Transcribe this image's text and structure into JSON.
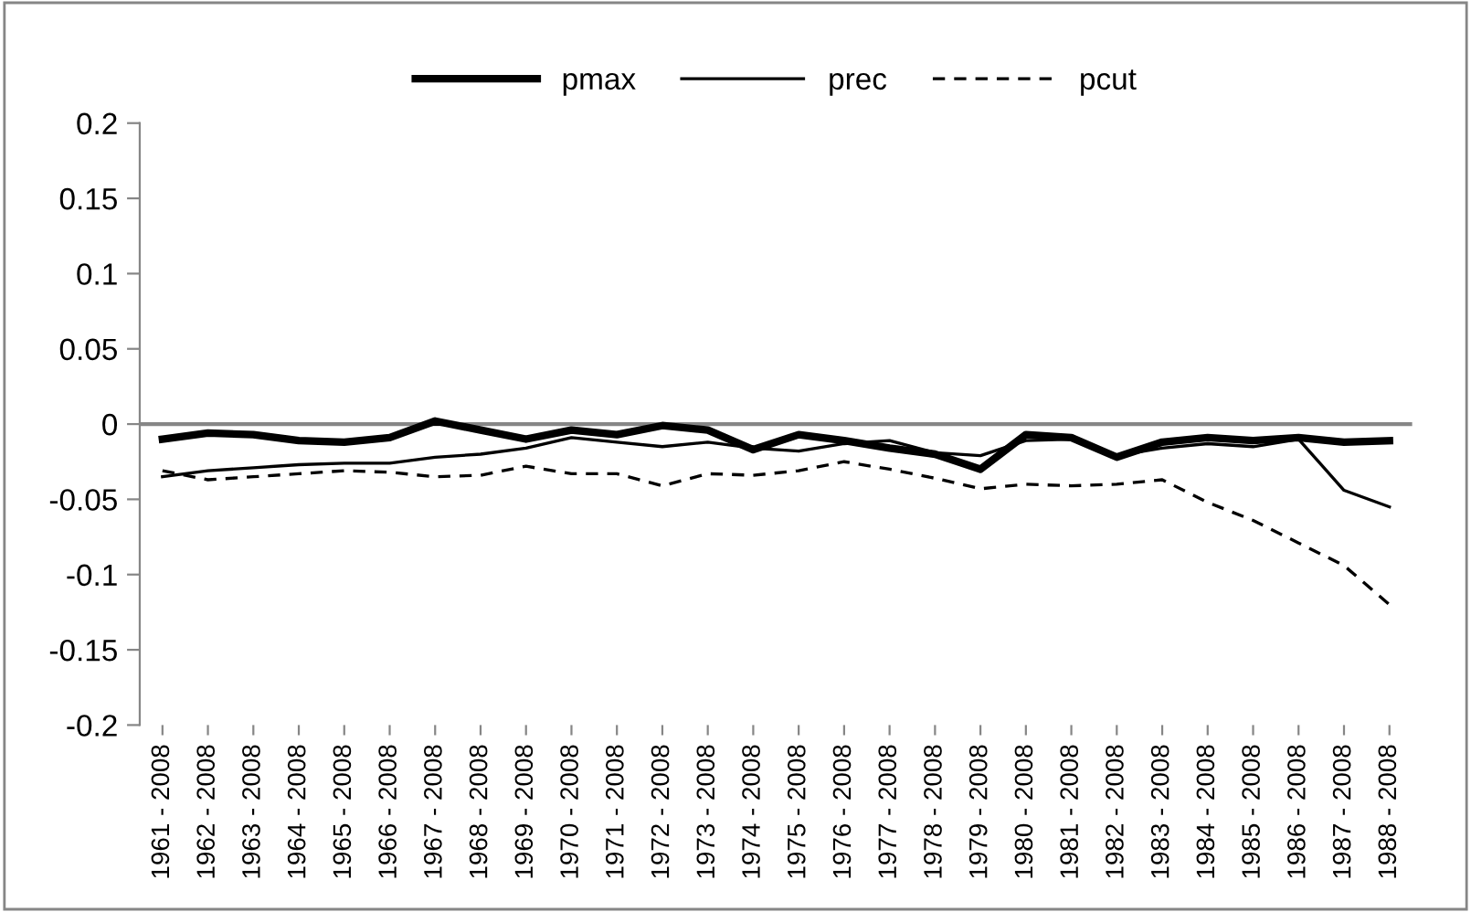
{
  "chart_data": {
    "type": "line",
    "categories": [
      "1961 - 2008",
      "1962 - 2008",
      "1963 - 2008",
      "1964 - 2008",
      "1965 - 2008",
      "1966 - 2008",
      "1967 - 2008",
      "1968 - 2008",
      "1969 - 2008",
      "1970 - 2008",
      "1971 - 2008",
      "1972 - 2008",
      "1973 - 2008",
      "1974 - 2008",
      "1975 - 2008",
      "1976 - 2008",
      "1977 - 2008",
      "1978 - 2008",
      "1979 - 2008",
      "1980 - 2008",
      "1981 - 2008",
      "1982 - 2008",
      "1983 - 2008",
      "1984 - 2008",
      "1985 - 2008",
      "1986 - 2008",
      "1987 - 2008",
      "1988 - 2008"
    ],
    "series": [
      {
        "name": "pmax",
        "color": "#000000",
        "line_style": "solid",
        "values": [
          -0.01,
          -0.006,
          -0.007,
          -0.011,
          -0.012,
          -0.009,
          0.002,
          -0.004,
          -0.01,
          -0.004,
          -0.007,
          -0.001,
          -0.004,
          -0.017,
          -0.007,
          -0.011,
          -0.016,
          -0.02,
          -0.03,
          -0.007,
          -0.009,
          -0.022,
          -0.012,
          -0.009,
          -0.011,
          -0.009,
          -0.012,
          -0.011
        ]
      },
      {
        "name": "prec",
        "color": "#000000",
        "line_style": "solid",
        "values": [
          -0.035,
          -0.031,
          -0.029,
          -0.027,
          -0.026,
          -0.026,
          -0.022,
          -0.02,
          -0.016,
          -0.009,
          -0.012,
          -0.015,
          -0.012,
          -0.016,
          -0.018,
          -0.013,
          -0.011,
          -0.019,
          -0.021,
          -0.011,
          -0.01,
          -0.021,
          -0.016,
          -0.013,
          -0.015,
          -0.01,
          -0.044,
          -0.055
        ]
      },
      {
        "name": "pcut",
        "color": "#000000",
        "line_style": "dashed",
        "values": [
          -0.031,
          -0.037,
          -0.035,
          -0.033,
          -0.031,
          -0.032,
          -0.035,
          -0.034,
          -0.028,
          -0.033,
          -0.033,
          -0.041,
          -0.033,
          -0.034,
          -0.031,
          -0.025,
          -0.03,
          -0.036,
          -0.043,
          -0.04,
          -0.041,
          -0.04,
          -0.037,
          -0.052,
          -0.064,
          -0.079,
          -0.094,
          -0.12
        ]
      }
    ],
    "ylim": [
      -0.2,
      0.2
    ],
    "yticks": [
      {
        "value": -0.2,
        "label": "-0.2"
      },
      {
        "value": -0.15,
        "label": "-0.15"
      },
      {
        "value": -0.1,
        "label": "-0.1"
      },
      {
        "value": -0.05,
        "label": "-0.05"
      },
      0,
      0.05,
      0.1,
      0.15,
      0.2
    ],
    "ref_lines": [
      {
        "axis": "y",
        "value": 0,
        "color": "#868686"
      }
    ],
    "grid": false,
    "legend": "top",
    "marker": "none"
  }
}
